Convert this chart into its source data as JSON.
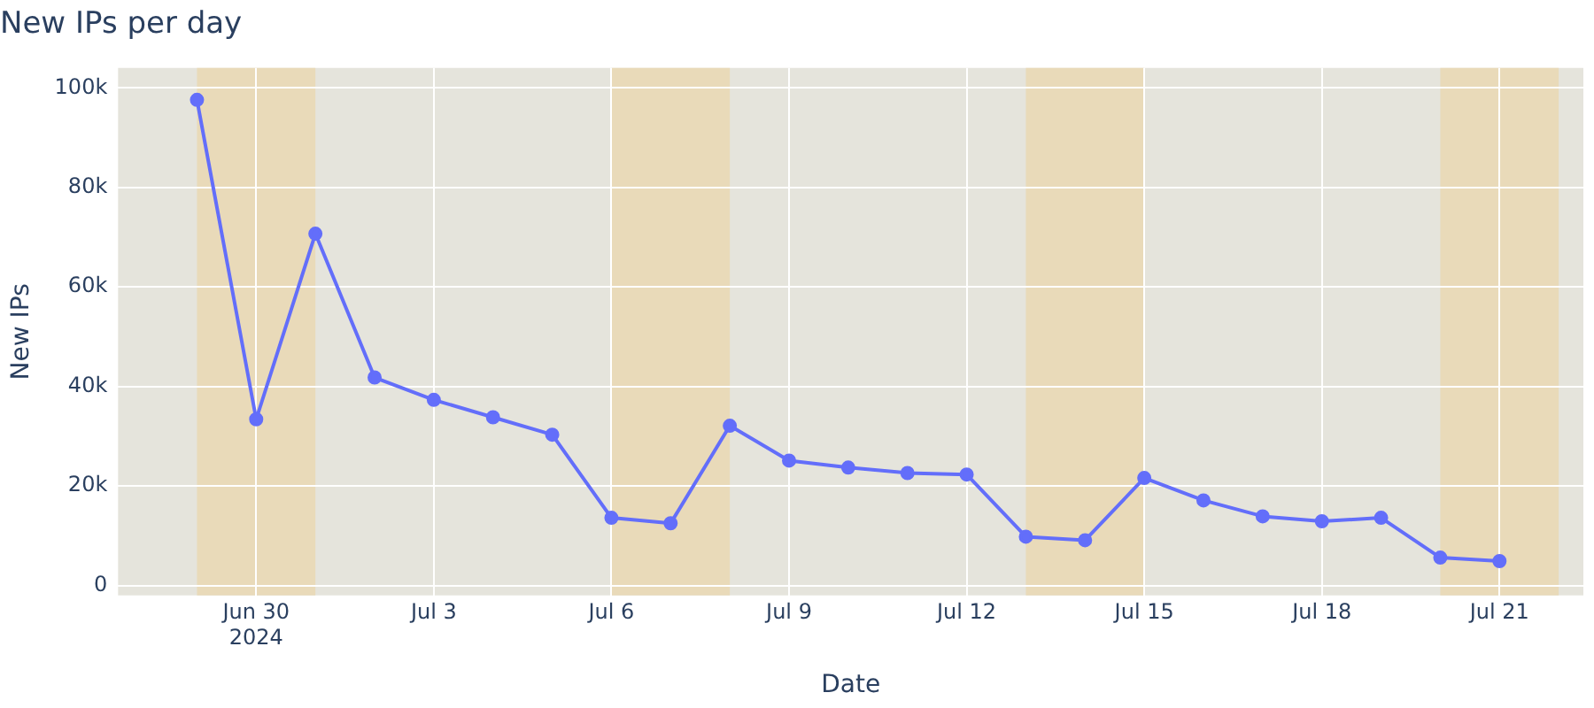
{
  "chart_data": {
    "type": "line",
    "title": "New IPs per day",
    "xlabel": "Date",
    "ylabel": "New IPs",
    "x": [
      "2024-06-29",
      "2024-06-30",
      "2024-07-01",
      "2024-07-02",
      "2024-07-03",
      "2024-07-04",
      "2024-07-05",
      "2024-07-06",
      "2024-07-07",
      "2024-07-08",
      "2024-07-09",
      "2024-07-10",
      "2024-07-11",
      "2024-07-12",
      "2024-07-13",
      "2024-07-14",
      "2024-07-15",
      "2024-07-16",
      "2024-07-17",
      "2024-07-18",
      "2024-07-19",
      "2024-07-20",
      "2024-07-21"
    ],
    "series": [
      {
        "color": "#636efa",
        "values": [
          97600,
          33400,
          70700,
          41800,
          37300,
          33800,
          30300,
          13600,
          12500,
          32100,
          25100,
          23700,
          22600,
          22300,
          9800,
          9100,
          21600,
          17100,
          13900,
          12900,
          13600,
          5600,
          4900
        ]
      }
    ],
    "xlim": [
      "2024-06-27T16:00",
      "2024-07-22T10:00"
    ],
    "xticks": [
      {
        "value": "2024-06-30",
        "label": "Jun 30\n2024"
      },
      {
        "value": "2024-07-03",
        "label": "Jul 3"
      },
      {
        "value": "2024-07-06",
        "label": "Jul 6"
      },
      {
        "value": "2024-07-09",
        "label": "Jul 9"
      },
      {
        "value": "2024-07-12",
        "label": "Jul 12"
      },
      {
        "value": "2024-07-15",
        "label": "Jul 15"
      },
      {
        "value": "2024-07-18",
        "label": "Jul 18"
      },
      {
        "value": "2024-07-21",
        "label": "Jul 21"
      }
    ],
    "ylim": [
      -2000,
      104000
    ],
    "yticks": [
      0,
      {
        "value": 20000,
        "label": "20k"
      },
      {
        "value": 40000,
        "label": "40k"
      },
      {
        "value": 60000,
        "label": "60k"
      },
      {
        "value": 80000,
        "label": "80k"
      },
      {
        "value": 100000,
        "label": "100k"
      }
    ],
    "bands": [
      {
        "axis": "x",
        "from": "2024-06-29",
        "to": "2024-07-01",
        "color": "#e9dab9"
      },
      {
        "axis": "x",
        "from": "2024-07-06",
        "to": "2024-07-08",
        "color": "#e9dab9"
      },
      {
        "axis": "x",
        "from": "2024-07-13",
        "to": "2024-07-15",
        "color": "#e9dab9"
      },
      {
        "axis": "x",
        "from": "2024-07-20",
        "to": "2024-07-22",
        "color": "#e9dab9"
      }
    ],
    "grid": true,
    "legend": false,
    "marker": "circle",
    "line_style": "solid"
  }
}
